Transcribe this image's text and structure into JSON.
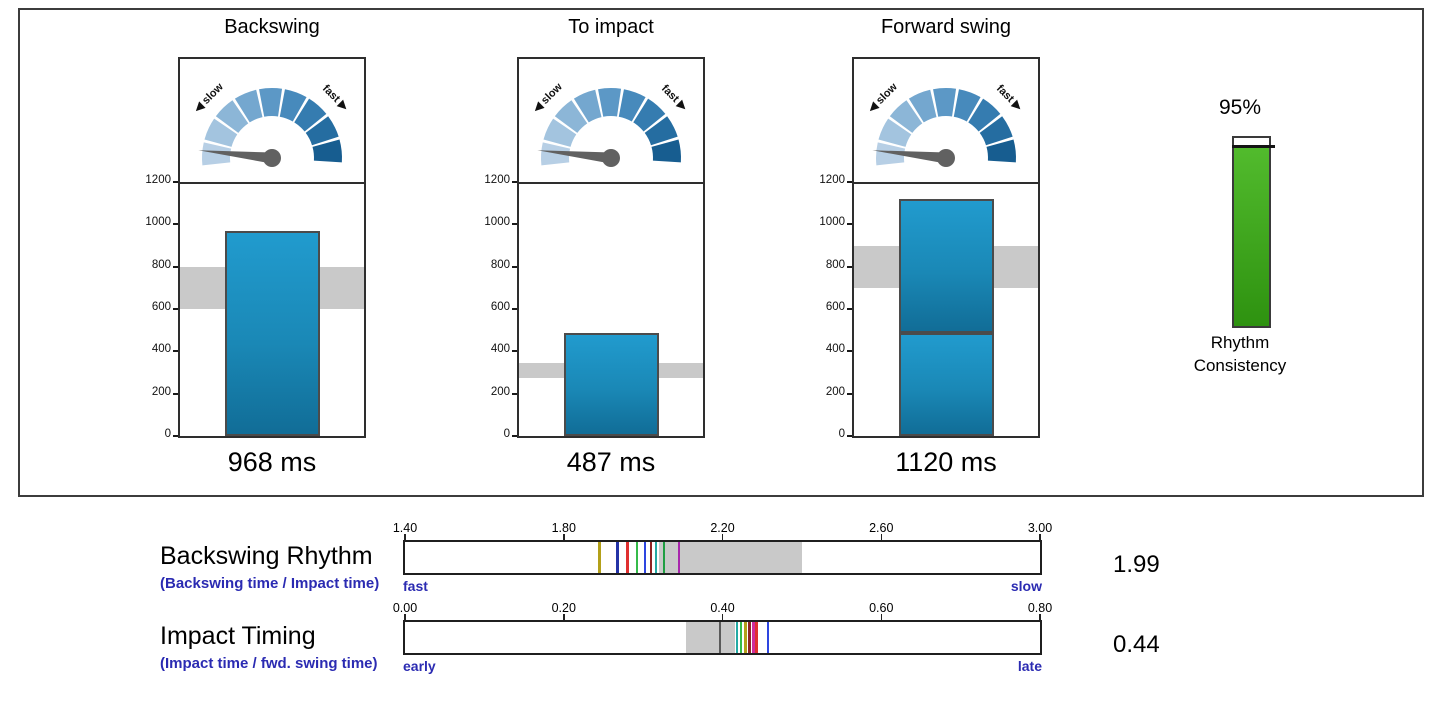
{
  "style": {
    "bar_blue_top": "#219bce",
    "bar_blue_bottom": "#116d97",
    "bar_border": "#4b4b4b",
    "target_band_gray": "#c9c9c9",
    "consistency_green_top": "#52bb2d",
    "consistency_green_bottom": "#2e9210",
    "needle_gray": "#616161",
    "scale_text_blue": "#2b2bb2",
    "gauge_segment_colors": [
      "#b7cfe5",
      "#a3c4df",
      "#8cb6d7",
      "#74a7cf",
      "#5c98c6",
      "#478abc",
      "#357cb0",
      "#256da1",
      "#175d90"
    ]
  },
  "gauge": {
    "slow_label": "◀ slow",
    "fast_label": "fast ▶",
    "needle_angle_deg": 174
  },
  "chart_data": {
    "swing_panels": {
      "type": "bar",
      "unit": "ms",
      "ylim": [
        0,
        1200
      ],
      "ytick_values": [
        0,
        200,
        400,
        600,
        800,
        1000,
        1200
      ],
      "ytick_labels": [
        "0",
        "200",
        "400",
        "600",
        "800",
        "1000",
        "1200"
      ],
      "panels": [
        {
          "title": "Backswing",
          "value": 968,
          "value_label": "968 ms",
          "target_band": [
            600,
            800
          ],
          "segments": [
            [
              0,
              968
            ]
          ]
        },
        {
          "title": "To impact",
          "value": 487,
          "value_label": "487 ms",
          "target_band": [
            275,
            345
          ],
          "segments": [
            [
              0,
              487
            ]
          ]
        },
        {
          "title": "Forward swing",
          "value": 1120,
          "value_label": "1120 ms",
          "target_band": [
            700,
            900
          ],
          "segments": [
            [
              0,
              487
            ],
            [
              487,
              1120
            ]
          ]
        }
      ]
    },
    "consistency": {
      "type": "bar",
      "value": 95,
      "value_label": "95%",
      "ylim": [
        0,
        100
      ],
      "label_lines": [
        "Rhythm",
        "Consistency"
      ]
    },
    "timing_scales": [
      {
        "title": "Backswing Rhythm",
        "subtitle": "(Backswing time / Impact time)",
        "xlim": [
          1.4,
          3.0
        ],
        "tick_values": [
          1.4,
          1.8,
          2.2,
          2.6,
          3.0
        ],
        "tick_labels": [
          "1.40",
          "1.80",
          "2.20",
          "2.60",
          "3.00"
        ],
        "left_end_label": "fast",
        "right_end_label": "slow",
        "value": 1.99,
        "value_label": "1.99",
        "target_band": [
          2.04,
          2.4
        ],
        "markers": [
          {
            "value": 1.89,
            "color": "#b3a019"
          },
          {
            "value": 1.935,
            "color": "#2433a6"
          },
          {
            "value": 1.96,
            "color": "#e03030"
          },
          {
            "value": 1.985,
            "color": "#35bb4a"
          },
          {
            "value": 2.005,
            "color": "#2e46e0"
          },
          {
            "value": 2.02,
            "color": "#8f2323"
          },
          {
            "value": 2.032,
            "color": "#23aaa4"
          },
          {
            "value": 2.052,
            "color": "#1f9e42"
          },
          {
            "value": 2.09,
            "color": "#a826ac"
          }
        ]
      },
      {
        "title": "Impact Timing",
        "subtitle": "(Impact time / fwd. swing time)",
        "xlim": [
          0.0,
          0.8
        ],
        "tick_values": [
          0.0,
          0.2,
          0.4,
          0.6,
          0.8
        ],
        "tick_labels": [
          "0.00",
          "0.20",
          "0.40",
          "0.60",
          "0.80"
        ],
        "left_end_label": "early",
        "right_end_label": "late",
        "value": 0.44,
        "value_label": "0.44",
        "target_band": [
          0.354,
          0.416
        ],
        "ref_line": 0.397,
        "markers": [
          {
            "value": 0.418,
            "color": "#23aaa4"
          },
          {
            "value": 0.423,
            "color": "#35bb4a"
          },
          {
            "value": 0.429,
            "color": "#b3a019"
          },
          {
            "value": 0.434,
            "color": "#8f2323"
          },
          {
            "value": 0.439,
            "color": "#cf2d9c"
          },
          {
            "value": 0.443,
            "color": "#e03030"
          },
          {
            "value": 0.457,
            "color": "#2e46e0"
          }
        ]
      }
    ]
  }
}
